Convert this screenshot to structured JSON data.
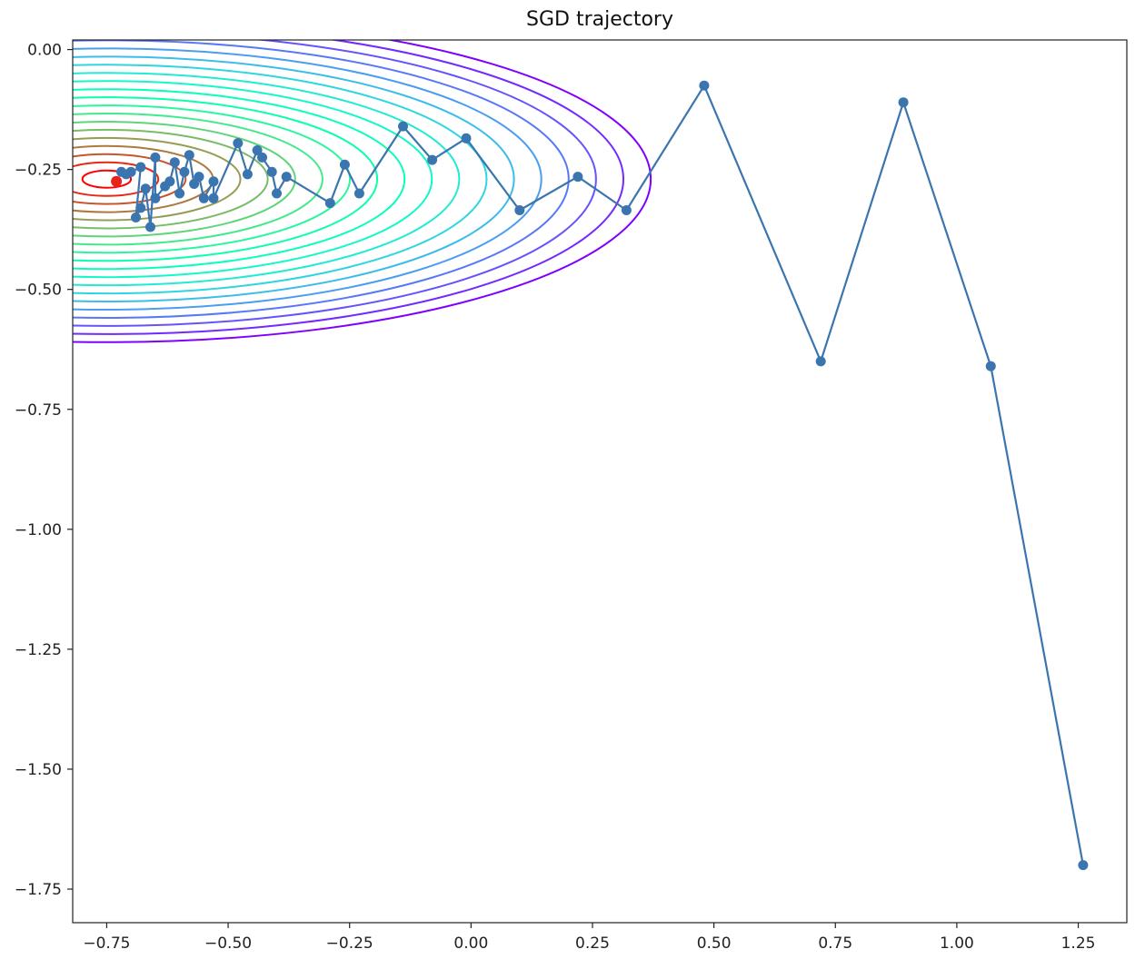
{
  "chart_data": {
    "type": "line",
    "title": "SGD trajectory",
    "xlabel": "",
    "ylabel": "",
    "xlim": [
      -0.82,
      1.35
    ],
    "ylim": [
      -1.82,
      0.02
    ],
    "xticks": [
      -0.75,
      -0.5,
      -0.25,
      0.0,
      0.25,
      0.5,
      0.75,
      1.0,
      1.25
    ],
    "xtick_labels": [
      "−0.75",
      "−0.50",
      "−0.25",
      "0.00",
      "0.25",
      "0.50",
      "0.75",
      "1.00",
      "1.25"
    ],
    "yticks": [
      0.0,
      -0.25,
      -0.5,
      -0.75,
      -1.0,
      -1.25,
      -1.5,
      -1.75
    ],
    "ytick_labels": [
      "0.00",
      "−0.25",
      "−0.50",
      "−0.75",
      "−1.00",
      "−1.25",
      "−1.50",
      "−1.75"
    ],
    "grid": false,
    "contour": {
      "center": [
        -0.75,
        -0.27
      ],
      "levels": 20,
      "semi_axis_x": [
        0.05,
        1.12
      ],
      "semi_axis_y": [
        0.018,
        0.34
      ],
      "colormap": "rainbow",
      "color_inner": "#ff2a17",
      "color_outer": "#8a2be2"
    },
    "trajectory": {
      "color": "#3b75af",
      "points": [
        [
          1.26,
          -1.7
        ],
        [
          1.07,
          -0.66
        ],
        [
          0.89,
          -0.11
        ],
        [
          0.72,
          -0.65
        ],
        [
          0.48,
          -0.075
        ],
        [
          0.32,
          -0.335
        ],
        [
          0.22,
          -0.265
        ],
        [
          0.1,
          -0.335
        ],
        [
          -0.01,
          -0.185
        ],
        [
          -0.08,
          -0.23
        ],
        [
          -0.14,
          -0.16
        ],
        [
          -0.23,
          -0.3
        ],
        [
          -0.26,
          -0.24
        ],
        [
          -0.29,
          -0.32
        ],
        [
          -0.38,
          -0.265
        ],
        [
          -0.4,
          -0.3
        ],
        [
          -0.41,
          -0.255
        ],
        [
          -0.43,
          -0.225
        ],
        [
          -0.44,
          -0.21
        ],
        [
          -0.46,
          -0.26
        ],
        [
          -0.48,
          -0.195
        ],
        [
          -0.53,
          -0.31
        ],
        [
          -0.53,
          -0.275
        ],
        [
          -0.55,
          -0.31
        ],
        [
          -0.56,
          -0.265
        ],
        [
          -0.57,
          -0.28
        ],
        [
          -0.58,
          -0.22
        ],
        [
          -0.59,
          -0.255
        ],
        [
          -0.6,
          -0.3
        ],
        [
          -0.61,
          -0.235
        ],
        [
          -0.62,
          -0.275
        ],
        [
          -0.63,
          -0.285
        ],
        [
          -0.65,
          -0.31
        ],
        [
          -0.65,
          -0.225
        ],
        [
          -0.66,
          -0.37
        ],
        [
          -0.67,
          -0.29
        ],
        [
          -0.68,
          -0.33
        ],
        [
          -0.69,
          -0.35
        ],
        [
          -0.68,
          -0.245
        ],
        [
          -0.7,
          -0.255
        ],
        [
          -0.71,
          -0.26
        ],
        [
          -0.72,
          -0.255
        ]
      ],
      "optimum": [
        -0.73,
        -0.275
      ],
      "optimum_color": "#e8231a"
    }
  }
}
